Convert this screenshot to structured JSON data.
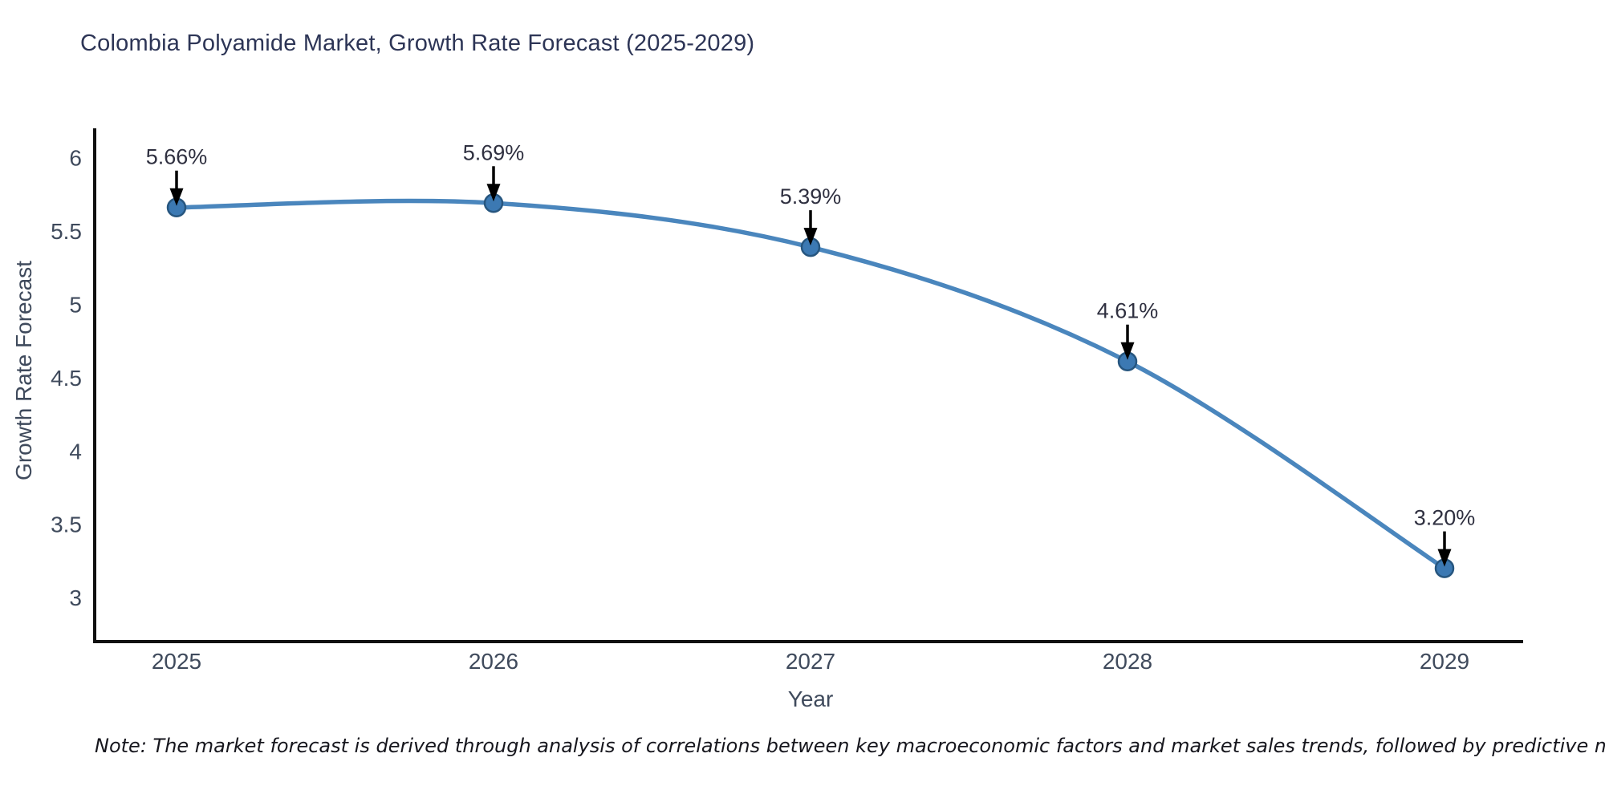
{
  "page": {
    "note": "Note: The market forecast is derived through analysis of correlations between key macroeconomic factors and market sales trends, followed by predictive modeling to project future sales"
  },
  "chart_data": {
    "type": "line",
    "title": "Colombia Polyamide Market, Growth Rate Forecast (2025-2029)",
    "xlabel": "Year",
    "ylabel": "Growth Rate Forecast",
    "categories": [
      2025,
      2026,
      2027,
      2028,
      2029
    ],
    "values": [
      5.66,
      5.69,
      5.39,
      4.61,
      3.2
    ],
    "point_labels": [
      "5.66%",
      "5.69%",
      "5.39%",
      "4.61%",
      "3.20%"
    ],
    "yticks": [
      3,
      3.5,
      4,
      4.5,
      5,
      5.5,
      6
    ],
    "ytick_labels": [
      "3",
      "3.5",
      "4",
      "4.5",
      "5",
      "5.5",
      "6"
    ],
    "xtick_labels": [
      "2025",
      "2026",
      "2027",
      "2028",
      "2029"
    ],
    "ylim": [
      2.7,
      6.2
    ],
    "grid": false,
    "legend_position": "none",
    "line_shape": "spline",
    "annotation_style": "percent label above point with black down-arrow",
    "colors": {
      "line": "#4a86bd",
      "marker_fill": "#3c79b3",
      "marker_edge": "#27567f",
      "arrow": "#000000",
      "title_text": "#2d3556",
      "tick_text": "#3f4a5c",
      "annotation_text": "#2f3040",
      "axis_line": "#101010",
      "background": "#ffffff"
    }
  }
}
